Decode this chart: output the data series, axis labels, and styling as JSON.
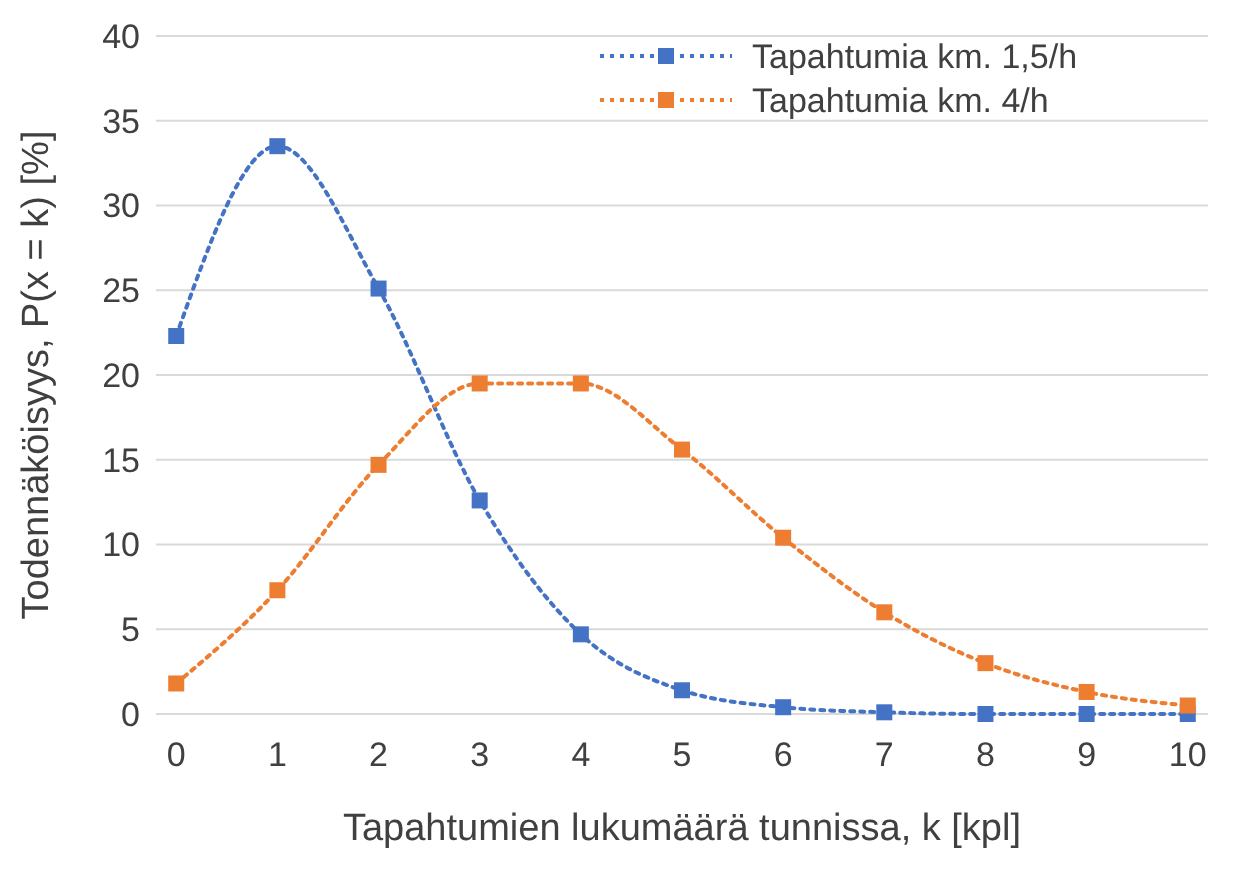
{
  "chart_data": {
    "type": "line",
    "xlabel": "Tapahtumien lukumäärä tunnissa, k [kpl]",
    "ylabel": "Todennäköisyys, P(x = k) [%]",
    "x": [
      0,
      1,
      2,
      3,
      4,
      5,
      6,
      7,
      8,
      9,
      10
    ],
    "series": [
      {
        "name": "Tapahtumia km. 1,5/h",
        "color": "#4472c4",
        "values": [
          22.3,
          33.5,
          25.1,
          12.6,
          4.7,
          1.4,
          0.4,
          0.1,
          0.0,
          0.0,
          0.0
        ]
      },
      {
        "name": "Tapahtumia km. 4/h",
        "color": "#ed7d31",
        "values": [
          1.8,
          7.3,
          14.7,
          19.5,
          19.5,
          15.6,
          10.4,
          6.0,
          3.0,
          1.3,
          0.5
        ]
      }
    ],
    "xlim": [
      -0.2,
      10.2
    ],
    "xticks": [
      0,
      1,
      2,
      3,
      4,
      5,
      6,
      7,
      8,
      9,
      10
    ],
    "ylim": [
      0,
      40
    ],
    "yticks": [
      0,
      5,
      10,
      15,
      20,
      25,
      30,
      35,
      40
    ],
    "grid": "y",
    "legend": "top right",
    "marker": "square",
    "line_style": "dotted"
  }
}
